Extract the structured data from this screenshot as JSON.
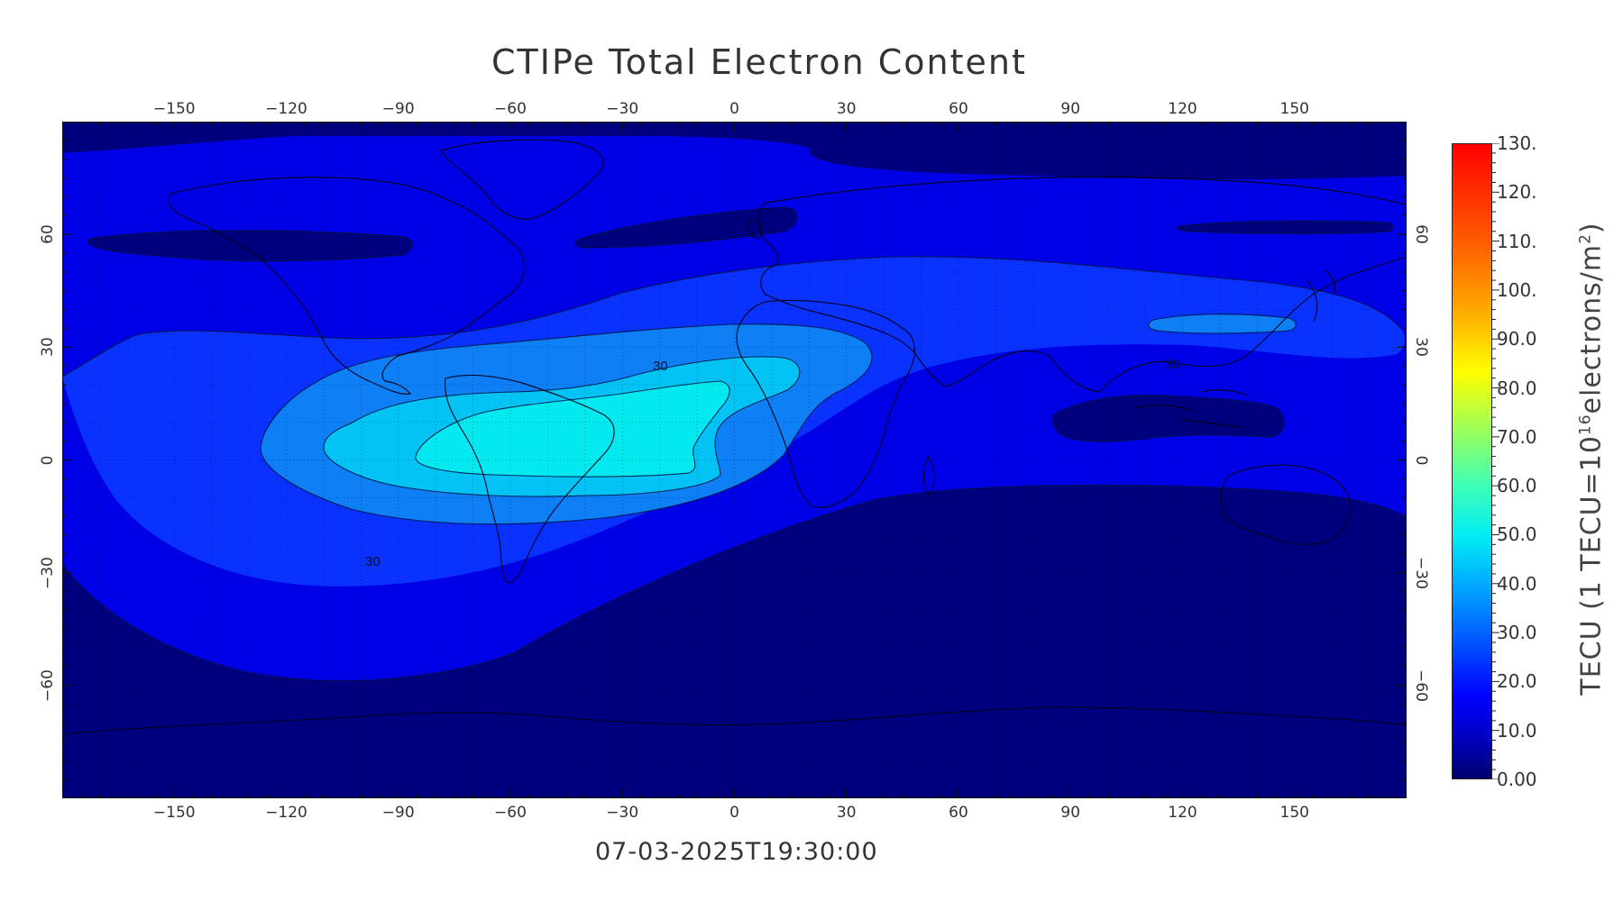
{
  "title": "CTIPe Total Electron Content",
  "timestamp": "07-03-2025T19:30:00",
  "map": {
    "projection": "equirectangular",
    "lon_range": [
      -180,
      180
    ],
    "lat_range": [
      -90,
      90
    ],
    "lon_ticks": [
      "-150",
      "-120",
      "-90",
      "-60",
      "-30",
      "0",
      "30",
      "60",
      "90",
      "120",
      "150"
    ],
    "lon_tick_values": [
      -150,
      -120,
      -90,
      -60,
      -30,
      0,
      30,
      60,
      90,
      120,
      150
    ],
    "lat_ticks": [
      "60",
      "30",
      "0",
      "-30",
      "-60"
    ],
    "lat_tick_values": [
      60,
      30,
      0,
      -30,
      -60
    ],
    "contour_labels": [
      "30",
      "30",
      "30"
    ],
    "grid": true,
    "colors": {
      "level_0": "#00007e",
      "level_10": "#0000e6",
      "level_20": "#0a32ff",
      "level_30": "#0f7ff5",
      "level_40": "#02c3f3",
      "level_50": "#04e8f0"
    }
  },
  "colorbar": {
    "labels": [
      "130.",
      "120.",
      "110.",
      "100.",
      "90.0",
      "80.0",
      "70.0",
      "60.0",
      "50.0",
      "40.0",
      "30.0",
      "20.0",
      "10.0",
      "0.00"
    ],
    "values": [
      130,
      120,
      110,
      100,
      90,
      80,
      70,
      60,
      50,
      40,
      30,
      20,
      10,
      0
    ],
    "unit_main": "TECU  (1 TECU=10",
    "unit_exp": "16",
    "unit_mid": "electrons/m",
    "unit_sq": "2",
    "unit_close": ")"
  }
}
